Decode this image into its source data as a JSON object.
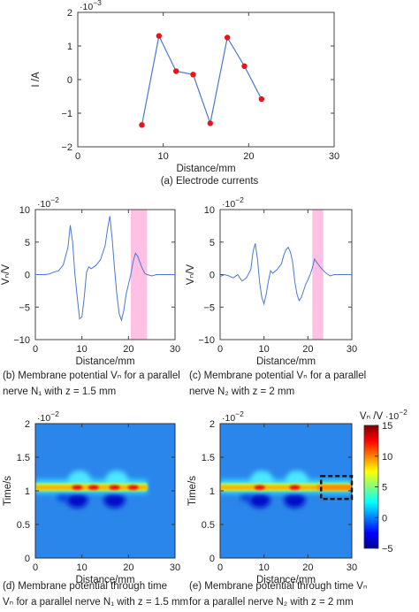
{
  "chart_data": [
    {
      "id": "a",
      "type": "line",
      "caption": "(a) Electrode currents",
      "xlabel": "Distance/mm",
      "ylabel": "I /A",
      "y_exponent": "·10",
      "y_exponent_power": "−3",
      "xlim": [
        0,
        30
      ],
      "ylim": [
        -2,
        2
      ],
      "xticks": [
        0,
        10,
        20,
        30
      ],
      "yticks": [
        -2,
        -1,
        0,
        1,
        2
      ],
      "xtick_labels": [
        "0",
        "10",
        "20",
        "30"
      ],
      "ytick_labels": [
        "−2",
        "−1",
        "0",
        "1",
        "2"
      ],
      "x": [
        7.5,
        9.5,
        11.5,
        13.5,
        15.5,
        17.5,
        19.5,
        21.5
      ],
      "y": [
        -1.35,
        1.3,
        0.25,
        0.15,
        -1.3,
        1.25,
        0.4,
        -0.58
      ],
      "line_color": "#4a78d4",
      "marker_color": "#e8141b"
    },
    {
      "id": "b",
      "type": "line",
      "caption_lines": [
        "(b) Membrane potential Vₙ for a parallel",
        "nerve N₁ with z = 1.5 mm"
      ],
      "xlabel": "Distance/mm",
      "ylabel": "Vₙ/V",
      "y_exponent": "·10",
      "y_exponent_power": "−2",
      "xlim": [
        0,
        30
      ],
      "ylim": [
        -10,
        10
      ],
      "xticks": [
        0,
        10,
        20,
        30
      ],
      "yticks": [
        -10,
        -5,
        0,
        5,
        10
      ],
      "xtick_labels": [
        "0",
        "10",
        "20",
        "30"
      ],
      "ytick_labels": [
        "−10",
        "−5",
        "0",
        "5",
        "10"
      ],
      "highlight_x": [
        20.5,
        24
      ],
      "highlight_color": "#ffb6de",
      "x": [
        0,
        2,
        3,
        4,
        5,
        6,
        7,
        7.5,
        8,
        8.5,
        9,
        9.5,
        10,
        10.5,
        11,
        11.5,
        12,
        13,
        14,
        15,
        15.5,
        16,
        16.5,
        17,
        17.5,
        18,
        18.5,
        19,
        19.5,
        20,
        20.5,
        21,
        21.5,
        22,
        22.5,
        23,
        23.5,
        24,
        25,
        26,
        28,
        30
      ],
      "y": [
        0,
        0,
        0.1,
        0.4,
        0.6,
        1.5,
        4.2,
        7.6,
        5,
        0,
        -3.5,
        -6.8,
        -6.5,
        -3.5,
        0.4,
        1.2,
        0.9,
        1.4,
        2.3,
        4.5,
        7,
        9,
        5.5,
        1,
        -3,
        -6,
        -7,
        -5.5,
        -3,
        -1.5,
        0,
        2,
        3.3,
        2.8,
        1.8,
        0.9,
        0.2,
        0,
        -0.2,
        0,
        0,
        0
      ],
      "line_color": "#4a78d4"
    },
    {
      "id": "c",
      "type": "line",
      "caption_lines": [
        "(c) Membrane potential Vₙ for a parallel",
        "nerve N₂ with z = 2 mm"
      ],
      "xlabel": "Distance/mm",
      "ylabel": "Vₙ/V",
      "y_exponent": "·10",
      "y_exponent_power": "−2",
      "xlim": [
        0,
        30
      ],
      "ylim": [
        -10,
        10
      ],
      "xticks": [
        0,
        10,
        20,
        30
      ],
      "yticks": [
        -10,
        -5,
        0,
        5,
        10
      ],
      "xtick_labels": [
        "0",
        "10",
        "20",
        "30"
      ],
      "ytick_labels": [
        "−10",
        "−5",
        "0",
        "5",
        "10"
      ],
      "highlight_x": [
        21,
        23.5
      ],
      "highlight_color": "#ffb6de",
      "x": [
        0,
        1,
        2,
        3,
        4,
        5,
        6,
        7,
        7.5,
        8,
        8.5,
        9,
        9.5,
        10,
        10.5,
        11,
        11.5,
        12,
        13,
        14,
        14.5,
        15,
        15.5,
        16,
        16.5,
        17,
        17.5,
        18,
        18.5,
        19,
        19.5,
        20,
        20.5,
        21,
        21.5,
        22,
        23,
        24,
        25,
        26,
        28,
        30
      ],
      "y": [
        -0.3,
        0,
        -0.2,
        -0.5,
        0,
        -1,
        -0.5,
        0.8,
        3.5,
        4.8,
        2.5,
        -1.2,
        -3.5,
        -4.5,
        -3,
        -1,
        0.6,
        0.2,
        0.8,
        1.7,
        3,
        3.8,
        4.2,
        3.5,
        2,
        -1,
        -3,
        -4,
        -3.5,
        -2.5,
        -1.5,
        -0.8,
        0,
        1,
        2.4,
        1.9,
        1,
        0.3,
        -0.2,
        0,
        0,
        0
      ],
      "line_color": "#4a78d4"
    },
    {
      "id": "d",
      "type": "heatmap",
      "caption_lines": [
        "(d) Membrane potential through time",
        "Vₙ for a parallel nerve N₁ with z = 1.5 mm"
      ],
      "xlabel": "Distance/mm",
      "ylabel": "Time/s",
      "y_exponent": "·10",
      "y_exponent_power": "−2",
      "xlim": [
        0,
        30
      ],
      "ylim": [
        0,
        2
      ],
      "xticks": [
        0,
        10,
        20,
        30
      ],
      "yticks": [
        0,
        0.5,
        1,
        1.5,
        2
      ],
      "xtick_labels": [
        "0",
        "10",
        "20",
        "30"
      ],
      "ytick_labels": [
        "0",
        "0.5",
        "1",
        "1.5",
        "2"
      ],
      "background_value": 0,
      "band_center_time": 1.05,
      "bumps_x_mm": [
        8,
        16
      ],
      "hot_x_mm": [
        9,
        12.5,
        17,
        21
      ]
    },
    {
      "id": "e",
      "type": "heatmap",
      "caption_lines": [
        "(e) Membrane potential through time Vₙ",
        "for a parallel nerve N₂ with z = 2 mm"
      ],
      "xlabel": "Distance/mm",
      "ylabel": "Time/s",
      "y_exponent": "·10",
      "y_exponent_power": "−2",
      "xlim": [
        0,
        30
      ],
      "ylim": [
        0,
        2
      ],
      "xticks": [
        0,
        10,
        20,
        30
      ],
      "yticks": [
        0,
        0.5,
        1,
        1.5,
        2
      ],
      "xtick_labels": [
        "0",
        "10",
        "20",
        "30"
      ],
      "ytick_labels": [
        "0",
        "0.5",
        "1",
        "1.5",
        "2"
      ],
      "background_value": 0,
      "band_center_time": 1.05,
      "bumps_x_mm": [
        8,
        16
      ],
      "hot_x_mm": [
        9,
        17
      ],
      "dashed_box": {
        "x": [
          23,
          30
        ],
        "t": [
          0.88,
          1.22
        ]
      }
    }
  ],
  "colorbar": {
    "title": "Vₙ /V",
    "exponent": "·10",
    "exponent_power": "−2",
    "range": [
      -5,
      15
    ],
    "ticks": [
      -5,
      0,
      5,
      10,
      15
    ],
    "tick_labels": [
      "−5",
      "0",
      "5",
      "10",
      "15"
    ],
    "colormap": "jet"
  }
}
